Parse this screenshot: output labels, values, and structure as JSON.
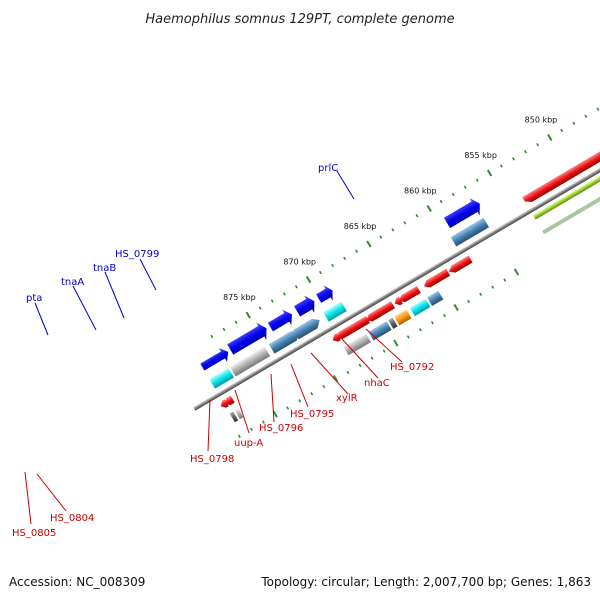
{
  "title": "Haemophilus somnus 129PT, complete genome",
  "footer": {
    "accession": "Accession: NC_008309",
    "summary": "Topology: circular; Length: 2,007,700 bp; Genes: 1,863"
  },
  "colors": {
    "background": "#ffffff",
    "backbone": "#808080",
    "tick": "#2e8b2e",
    "label_forward": "#0000cc",
    "label_reverse": "#cc0000",
    "red_feature": "#ee1111",
    "blue_feature": "#0000ee",
    "steel_feature": "#4682b4",
    "cyan_feature": "#00e5ee",
    "gray_feature": "#b0b0b0",
    "dark_gray_feature": "#606060",
    "orange_feature": "#f59a10",
    "green_feature": "#9acd32"
  },
  "scale_labels": [
    {
      "text": "850 kbp",
      "kbp": 850
    },
    {
      "text": "855 kbp",
      "kbp": 855
    },
    {
      "text": "860 kbp",
      "kbp": 860
    },
    {
      "text": "865 kbp",
      "kbp": 865
    },
    {
      "text": "870 kbp",
      "kbp": 870
    },
    {
      "text": "875 kbp",
      "kbp": 875
    }
  ],
  "gene_labels_forward": [
    "prlC",
    "HS_0799",
    "tnaB",
    "tnaA",
    "pta"
  ],
  "gene_labels_reverse": [
    "HS_0792",
    "nhaC",
    "xylR",
    "HS_0795",
    "HS_0796",
    "uup-A",
    "HS_0798",
    "HS_0804",
    "HS_0805"
  ]
}
